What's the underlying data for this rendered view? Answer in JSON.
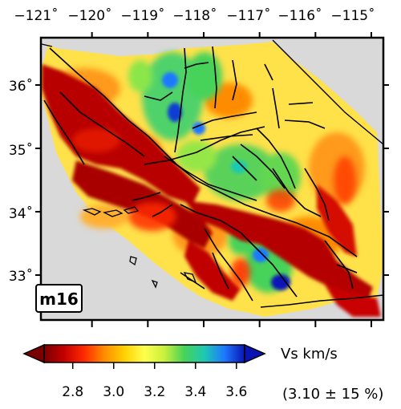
{
  "map": {
    "model_label": "m16",
    "lon_ticks": [
      "−121˚",
      "−120˚",
      "−119˚",
      "−118˚",
      "−117˚",
      "−116˚",
      "−115˚"
    ],
    "lat_ticks": [
      "36˚",
      "35˚",
      "34˚",
      "33˚"
    ],
    "lon_values": [
      -121,
      -120,
      -119,
      -118,
      -117,
      -116,
      -115
    ],
    "lat_values": [
      36,
      35,
      34,
      33
    ]
  },
  "colorbar": {
    "ticks": [
      "2.8",
      "3.0",
      "3.2",
      "3.4",
      "3.6"
    ],
    "tick_values": [
      2.8,
      3.0,
      3.2,
      3.4,
      3.6
    ],
    "range": [
      2.66,
      3.64
    ],
    "title": "Vs  km/s",
    "subtitle": "(3.10 ± 15 %)",
    "colors": [
      "#7a0000",
      "#c40000",
      "#ff2a00",
      "#ff8c00",
      "#ffd000",
      "#ffff4d",
      "#c8f03c",
      "#46d25a",
      "#1ec8b4",
      "#1e78ff",
      "#0a14b4"
    ]
  },
  "colors": {
    "background_land": "#d9d9d9",
    "slow": "#a80000",
    "fast": "#0a14b4",
    "fault_lines": "#000000"
  }
}
